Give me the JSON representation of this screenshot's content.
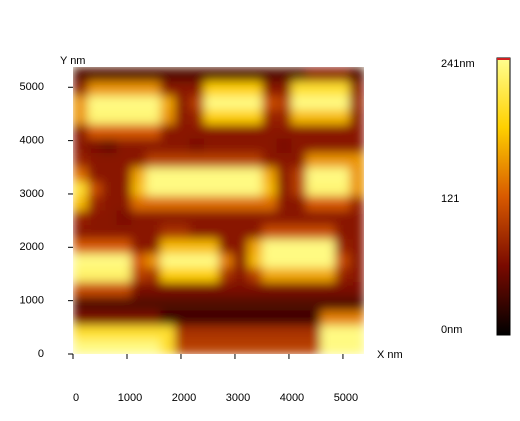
{
  "chart_data": {
    "type": "heatmap",
    "x_label": "X nm",
    "y_label": "Y nm",
    "xlim": [
      0,
      5390
    ],
    "ylim": [
      0,
      5380
    ],
    "xticks": [
      0,
      1000,
      2000,
      3000,
      4000,
      5000
    ],
    "yticks": [
      0,
      1000,
      2000,
      3000,
      4000,
      5000
    ],
    "clim": [
      0,
      241
    ],
    "cticks": [
      {
        "value": 0,
        "label": "0nm"
      },
      121,
      {
        "value": 241,
        "label": "241nm"
      }
    ],
    "colormap": [
      "#000000",
      "#7a0a00",
      "#d85a00",
      "#ffd000",
      "#ffff90"
    ],
    "z": [
      [
        40,
        40,
        40,
        40,
        40,
        40,
        40,
        40,
        40,
        40,
        40,
        40,
        40,
        40,
        40,
        40,
        70,
        70,
        70,
        40
      ],
      [
        70,
        150,
        150,
        150,
        150,
        150,
        70,
        70,
        70,
        180,
        180,
        180,
        180,
        70,
        70,
        200,
        200,
        200,
        200,
        70
      ],
      [
        150,
        235,
        235,
        235,
        235,
        235,
        160,
        70,
        100,
        235,
        235,
        235,
        235,
        110,
        100,
        235,
        235,
        235,
        235,
        80
      ],
      [
        150,
        230,
        230,
        230,
        230,
        230,
        150,
        70,
        80,
        180,
        180,
        180,
        180,
        80,
        80,
        170,
        170,
        170,
        170,
        70
      ],
      [
        70,
        120,
        120,
        120,
        120,
        120,
        70,
        70,
        70,
        70,
        70,
        70,
        70,
        70,
        70,
        70,
        70,
        70,
        70,
        70
      ],
      [
        70,
        60,
        50,
        70,
        70,
        70,
        70,
        70,
        60,
        70,
        70,
        70,
        70,
        70,
        60,
        70,
        70,
        70,
        70,
        70
      ],
      [
        80,
        70,
        70,
        70,
        70,
        100,
        100,
        100,
        100,
        100,
        100,
        100,
        100,
        70,
        70,
        70,
        150,
        150,
        150,
        150
      ],
      [
        130,
        70,
        70,
        70,
        160,
        235,
        235,
        235,
        235,
        235,
        235,
        235,
        235,
        160,
        70,
        100,
        235,
        235,
        235,
        150
      ],
      [
        200,
        110,
        70,
        70,
        170,
        235,
        235,
        235,
        235,
        235,
        235,
        235,
        235,
        170,
        70,
        100,
        230,
        230,
        230,
        150
      ],
      [
        170,
        80,
        70,
        70,
        130,
        130,
        130,
        130,
        130,
        130,
        130,
        130,
        130,
        130,
        70,
        70,
        120,
        120,
        120,
        80
      ],
      [
        80,
        70,
        70,
        60,
        70,
        70,
        70,
        70,
        70,
        70,
        70,
        70,
        70,
        70,
        70,
        70,
        70,
        70,
        70,
        70
      ],
      [
        70,
        70,
        70,
        70,
        70,
        70,
        90,
        90,
        70,
        70,
        70,
        70,
        70,
        110,
        110,
        110,
        110,
        110,
        70,
        70
      ],
      [
        120,
        120,
        120,
        120,
        70,
        70,
        170,
        170,
        170,
        170,
        70,
        70,
        160,
        235,
        235,
        235,
        235,
        235,
        80,
        70
      ],
      [
        235,
        235,
        235,
        235,
        120,
        150,
        235,
        235,
        235,
        235,
        140,
        70,
        170,
        235,
        235,
        235,
        235,
        235,
        110,
        70
      ],
      [
        225,
        225,
        225,
        225,
        100,
        90,
        180,
        180,
        180,
        180,
        90,
        70,
        100,
        160,
        160,
        160,
        160,
        160,
        80,
        70
      ],
      [
        110,
        110,
        110,
        110,
        60,
        60,
        60,
        60,
        60,
        60,
        60,
        60,
        60,
        60,
        60,
        60,
        60,
        60,
        60,
        60
      ],
      [
        40,
        40,
        40,
        40,
        40,
        40,
        40,
        40,
        40,
        40,
        40,
        40,
        40,
        40,
        40,
        40,
        40,
        40,
        40,
        40
      ],
      [
        60,
        60,
        60,
        60,
        60,
        60,
        30,
        30,
        30,
        30,
        30,
        30,
        30,
        30,
        30,
        30,
        30,
        140,
        140,
        140
      ],
      [
        200,
        200,
        200,
        200,
        200,
        200,
        200,
        90,
        90,
        90,
        90,
        90,
        90,
        90,
        90,
        90,
        90,
        235,
        235,
        235
      ],
      [
        235,
        235,
        235,
        235,
        235,
        235,
        200,
        100,
        100,
        100,
        100,
        100,
        100,
        100,
        100,
        100,
        100,
        235,
        235,
        235
      ]
    ]
  }
}
